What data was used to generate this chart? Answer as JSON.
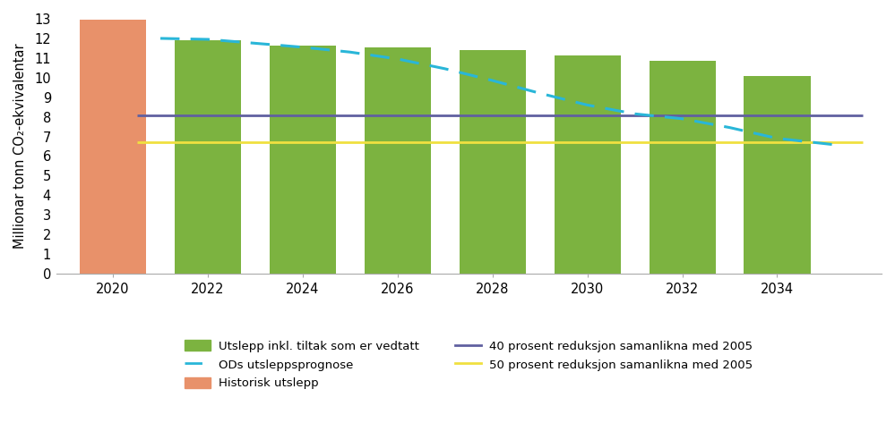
{
  "bar_years_green": [
    2022,
    2024,
    2026,
    2028,
    2030,
    2032,
    2034
  ],
  "bar_values_green": [
    11.9,
    11.65,
    11.55,
    11.4,
    11.15,
    10.85,
    10.1
  ],
  "bar_year_orange": 2020,
  "bar_value_orange": 12.95,
  "bar_color_green": "#7cb340",
  "bar_color_orange": "#e8916a",
  "dashed_line_x": [
    2021.0,
    2022.0,
    2023.0,
    2024.0,
    2025.0,
    2026.0,
    2027.0,
    2028.0,
    2029.0,
    2030.0,
    2031.0,
    2032.0,
    2033.0,
    2034.0,
    2035.3
  ],
  "dashed_line_y": [
    12.0,
    11.95,
    11.75,
    11.55,
    11.3,
    10.95,
    10.45,
    9.85,
    9.2,
    8.6,
    8.15,
    7.9,
    7.45,
    6.9,
    6.55
  ],
  "dashed_line_color": "#29b6d8",
  "purple_line_y": 8.05,
  "purple_line_color": "#6060a0",
  "yellow_line_y": 6.7,
  "yellow_line_color": "#f0e040",
  "xlim": [
    2018.8,
    2036.2
  ],
  "ylim": [
    0,
    13
  ],
  "yticks": [
    0,
    1,
    2,
    3,
    4,
    5,
    6,
    7,
    8,
    9,
    10,
    11,
    12,
    13
  ],
  "xticks": [
    2020,
    2022,
    2024,
    2026,
    2028,
    2030,
    2032,
    2034
  ],
  "ylabel": "Millionar tonn CO₂-ekvivalentar",
  "legend_green_label": "Utslepp inkl. tiltak som er vedtatt",
  "legend_orange_label": "Historisk utslepp",
  "legend_dashed_label": "ODs utsleppsprognose",
  "legend_purple_label": "40 prosent reduksjon samanlikna med 2005",
  "legend_yellow_label": "50 prosent reduksjon samanlikna med 2005",
  "bar_width": 1.4,
  "background_color": "#ffffff",
  "axes_background": "#ffffff",
  "line_extend_x_start": 2020.5,
  "line_extend_x_end": 2035.8
}
